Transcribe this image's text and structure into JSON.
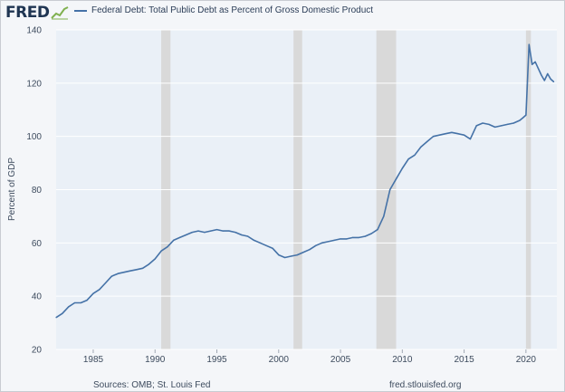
{
  "header": {
    "brand": "FRED",
    "legend_label": "Federal Debt: Total Public Debt as Percent of Gross Domestic Product"
  },
  "footer": {
    "source": "Sources: OMB; St. Louis Fed",
    "site": "fred.stlouisfed.org"
  },
  "colors": {
    "line": "#4572a7",
    "recession": "#d9d9d9",
    "grid": "#ffffff",
    "plot_bg": "#eaf0f7"
  },
  "chart_data": {
    "type": "line",
    "title": "Federal Debt: Total Public Debt as Percent of Gross Domestic Product",
    "xlabel": "",
    "ylabel": "Percent of GDP",
    "xlim": [
      1982.0,
      2022.5
    ],
    "ylim": [
      20,
      140
    ],
    "yticks": [
      20,
      40,
      60,
      80,
      100,
      120,
      140
    ],
    "xticks": [
      1985,
      1990,
      1995,
      2000,
      2005,
      2010,
      2015,
      2020
    ],
    "grid": true,
    "legend": "top",
    "recessions": [
      [
        1990.5,
        1991.25
      ],
      [
        2001.2,
        2001.9
      ],
      [
        2007.9,
        2009.5
      ],
      [
        2020.0,
        2020.4
      ]
    ],
    "series": [
      {
        "name": "Federal Debt: Total Public Debt as Percent of Gross Domestic Product",
        "x": [
          1982.0,
          1982.5,
          1983.0,
          1983.5,
          1984.0,
          1984.5,
          1985.0,
          1985.5,
          1986.0,
          1986.5,
          1987.0,
          1987.5,
          1988.0,
          1988.5,
          1989.0,
          1989.5,
          1990.0,
          1990.5,
          1991.0,
          1991.5,
          1992.0,
          1992.5,
          1993.0,
          1993.5,
          1994.0,
          1994.5,
          1995.0,
          1995.5,
          1996.0,
          1996.5,
          1997.0,
          1997.5,
          1998.0,
          1998.5,
          1999.0,
          1999.5,
          2000.0,
          2000.5,
          2001.0,
          2001.5,
          2002.0,
          2002.5,
          2003.0,
          2003.5,
          2004.0,
          2004.5,
          2005.0,
          2005.5,
          2006.0,
          2006.5,
          2007.0,
          2007.5,
          2008.0,
          2008.5,
          2009.0,
          2009.5,
          2010.0,
          2010.5,
          2011.0,
          2011.5,
          2012.0,
          2012.5,
          2013.0,
          2013.5,
          2014.0,
          2014.5,
          2015.0,
          2015.5,
          2016.0,
          2016.5,
          2017.0,
          2017.5,
          2018.0,
          2018.5,
          2019.0,
          2019.5,
          2019.75,
          2020.0,
          2020.25,
          2020.5,
          2020.75,
          2021.0,
          2021.25,
          2021.5,
          2021.75,
          2022.0,
          2022.25
        ],
        "values": [
          32.0,
          33.5,
          36.0,
          37.5,
          37.5,
          38.5,
          41.0,
          42.5,
          45.0,
          47.5,
          48.5,
          49.0,
          49.5,
          50.0,
          50.5,
          52.0,
          54.0,
          57.0,
          58.5,
          61.0,
          62.0,
          63.0,
          64.0,
          64.5,
          64.0,
          64.5,
          65.0,
          64.5,
          64.5,
          64.0,
          63.0,
          62.5,
          61.0,
          60.0,
          59.0,
          58.0,
          55.5,
          54.5,
          55.0,
          55.5,
          56.5,
          57.5,
          59.0,
          60.0,
          60.5,
          61.0,
          61.5,
          61.5,
          62.0,
          62.0,
          62.5,
          63.5,
          65.0,
          70.0,
          80.0,
          84.0,
          88.0,
          91.5,
          93.0,
          96.0,
          98.0,
          100.0,
          100.5,
          101.0,
          101.5,
          101.0,
          100.5,
          99.0,
          104.0,
          105.0,
          104.5,
          103.5,
          104.0,
          104.5,
          105.0,
          106.0,
          107.0,
          108.0,
          134.5,
          127.0,
          128.0,
          125.5,
          123.0,
          121.0,
          123.5,
          121.5,
          120.5
        ]
      }
    ]
  }
}
